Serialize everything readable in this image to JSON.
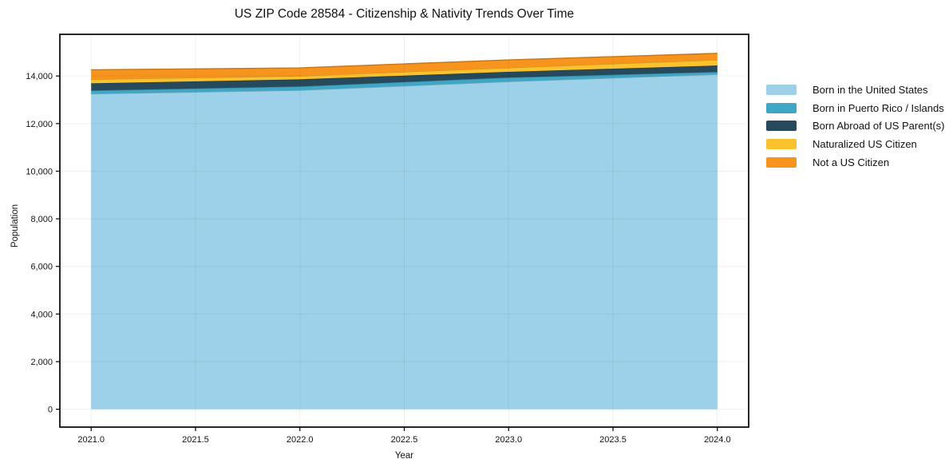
{
  "chart_data": {
    "type": "area",
    "stacked": true,
    "title": "US ZIP Code 28584 - Citizenship & Nativity Trends Over Time",
    "xlabel": "Year",
    "ylabel": "Population",
    "x": [
      2021,
      2022,
      2023,
      2024
    ],
    "series": [
      {
        "name": "Born in the United States",
        "color": "#9dd1e9",
        "values": [
          13250,
          13400,
          13765,
          14070
        ]
      },
      {
        "name": "Born in Puerto Rico / Islands",
        "color": "#3fa7c5",
        "values": [
          140,
          160,
          170,
          100
        ]
      },
      {
        "name": "Born Abroad of US Parent(s)",
        "color": "#27495c",
        "values": [
          300,
          300,
          240,
          270
        ]
      },
      {
        "name": "Naturalized US Citizen",
        "color": "#fcc22e",
        "values": [
          170,
          140,
          170,
          240
        ]
      },
      {
        "name": "Not a US Citizen",
        "color": "#f7941e",
        "values": [
          400,
          340,
          330,
          270
        ]
      }
    ],
    "xlim": [
      2020.85,
      2024.15
    ],
    "ylim": [
      -750,
      15750
    ],
    "xticks": {
      "values": [
        2021.0,
        2021.5,
        2022.0,
        2022.5,
        2023.0,
        2023.5,
        2024.0
      ],
      "labels": [
        "2021.0",
        "2021.5",
        "2022.0",
        "2022.5",
        "2023.0",
        "2023.5",
        "2024.0"
      ]
    },
    "yticks": {
      "values": [
        0,
        2000,
        4000,
        6000,
        8000,
        10000,
        12000,
        14000
      ],
      "labels": [
        "0",
        "2,000",
        "4,000",
        "6,000",
        "8,000",
        "10,000",
        "12,000",
        "14,000"
      ]
    },
    "grid": true,
    "legend_position": "right-outside",
    "baseline": 0
  },
  "style": {
    "spine_color": "#000000",
    "grid_color": "rgba(0,0,0,0.06)",
    "tick_color": "#000000",
    "text_color": "#111111",
    "background": "#ffffff"
  }
}
